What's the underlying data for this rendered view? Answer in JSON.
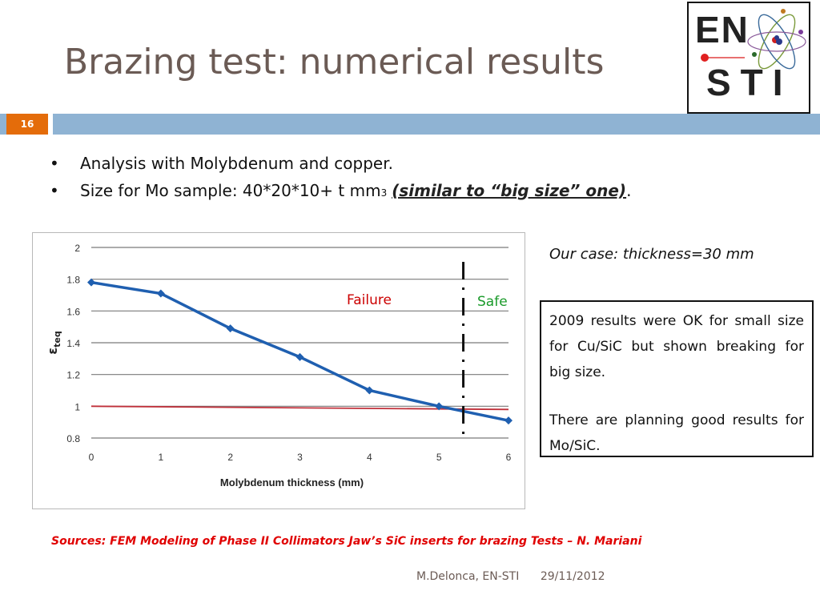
{
  "slide": {
    "title": "Brazing test: numerical results",
    "number": "16"
  },
  "logo": {
    "line1": "EN",
    "line2": "STI"
  },
  "bullets": [
    {
      "text": "Analysis with Molybdenum and copper."
    },
    {
      "text": "Size for Mo sample: 40*20*10+ t mm",
      "sup": "3",
      "emphasis": "(similar to “big size” one)",
      "tail": "."
    }
  ],
  "our_case": "Our case: thickness=30 mm",
  "results_box": {
    "p1": "2009 results were OK for small size for Cu/SiC but shown breaking for big size.",
    "p2": "There are planning good results for Mo/SiC."
  },
  "sources": "Sources: FEM Modeling of Phase II Collimators Jaw’s SiC inserts for brazing Tests – N. Mariani",
  "footer": {
    "author": "M.Delonca, EN-STI",
    "date": "29/11/2012"
  },
  "chart_data": {
    "type": "line",
    "x": [
      0,
      1,
      2,
      3,
      4,
      5,
      6
    ],
    "series": [
      {
        "values": [
          1.78,
          1.71,
          1.49,
          1.31,
          1.1,
          1.0,
          0.91
        ],
        "color": "#1f5fb0"
      }
    ],
    "threshold": {
      "y_start": 1.0,
      "y_end": 0.98,
      "color": "#c0303a"
    },
    "cutoff_x": 5.35,
    "region_labels": {
      "failure": "Failure",
      "safe": "Safe"
    },
    "xlabel": "Molybdenum thickness (mm)",
    "ylabel": "ε",
    "ylabel_sub": "teq",
    "xlim": [
      0,
      6
    ],
    "ylim": [
      0.8,
      2
    ],
    "y_ticks": [
      "0.8",
      "1",
      "1.2",
      "1.4",
      "1.6",
      "1.8",
      "2"
    ],
    "x_ticks": [
      "0",
      "1",
      "2",
      "3",
      "4",
      "5",
      "6"
    ],
    "grid": true,
    "colors": {
      "failure": "#cc0000",
      "safe": "#1a9a2a"
    }
  }
}
